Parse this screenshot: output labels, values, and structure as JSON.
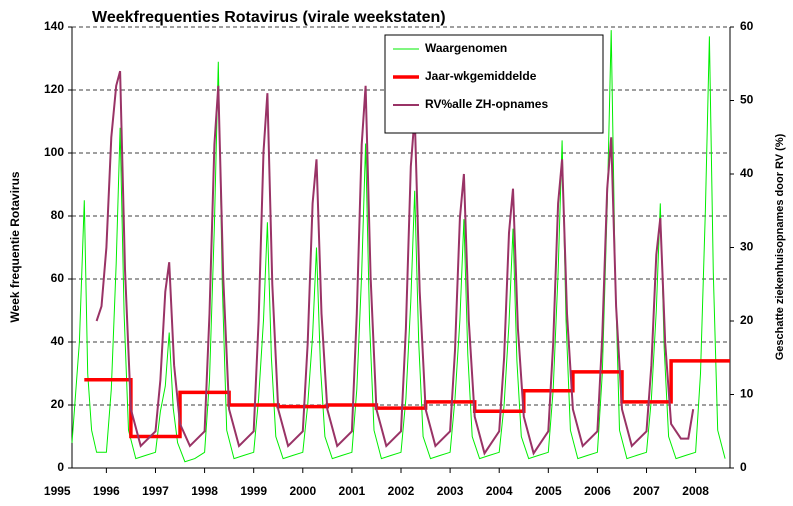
{
  "chart_data": {
    "type": "line",
    "title": "Weekfrequenties Rotavirus (virale weekstaten)",
    "y_label": "Week frequentie Rotavirus",
    "y2_label": "Geschatte ziekenhuisopnames door RV (%)",
    "xlim": [
      1995.3,
      2008.7
    ],
    "xticks": [
      1995,
      1996,
      1997,
      1998,
      1999,
      2000,
      2001,
      2002,
      2003,
      2004,
      2005,
      2006,
      2007,
      2008
    ],
    "ylim": [
      0,
      140
    ],
    "yticks": [
      0,
      20,
      40,
      60,
      80,
      100,
      120,
      140
    ],
    "y2lim": [
      0,
      60
    ],
    "y2ticks": [
      0,
      10,
      20,
      30,
      40,
      50,
      60
    ],
    "grid": true,
    "legend": "top-right",
    "series": [
      {
        "name": "Waargenomen",
        "color": "#00ee00",
        "x": [
          1995.3,
          1995.45,
          1995.55,
          1995.62,
          1995.7,
          1995.8,
          1996.0,
          1996.1,
          1996.2,
          1996.28,
          1996.36,
          1996.45,
          1996.6,
          1996.8,
          1997.0,
          1997.1,
          1997.2,
          1997.28,
          1997.36,
          1997.45,
          1997.6,
          1997.8,
          1998.0,
          1998.1,
          1998.2,
          1998.28,
          1998.36,
          1998.45,
          1998.6,
          1998.8,
          1999.0,
          1999.1,
          1999.2,
          1999.28,
          1999.36,
          1999.45,
          1999.6,
          1999.8,
          2000.0,
          2000.1,
          2000.2,
          2000.28,
          2000.36,
          2000.45,
          2000.6,
          2000.8,
          2001.0,
          2001.1,
          2001.2,
          2001.28,
          2001.36,
          2001.45,
          2001.6,
          2001.8,
          2002.0,
          2002.1,
          2002.2,
          2002.28,
          2002.36,
          2002.45,
          2002.6,
          2002.8,
          2003.0,
          2003.1,
          2003.2,
          2003.28,
          2003.36,
          2003.45,
          2003.6,
          2003.8,
          2004.0,
          2004.1,
          2004.2,
          2004.28,
          2004.36,
          2004.45,
          2004.6,
          2004.8,
          2005.0,
          2005.1,
          2005.2,
          2005.28,
          2005.36,
          2005.45,
          2005.6,
          2005.8,
          2006.0,
          2006.1,
          2006.2,
          2006.28,
          2006.36,
          2006.45,
          2006.6,
          2006.8,
          2007.0,
          2007.1,
          2007.2,
          2007.28,
          2007.36,
          2007.45,
          2007.6,
          2007.8,
          2008.0,
          2008.1,
          2008.2,
          2008.28,
          2008.36,
          2008.45,
          2008.6
        ],
        "values": [
          8,
          40,
          85,
          30,
          12,
          5,
          5,
          25,
          65,
          108,
          49,
          12,
          3,
          4,
          5,
          18,
          26,
          43,
          19,
          8,
          2,
          3,
          5,
          28,
          77,
          129,
          58,
          12,
          3,
          4,
          5,
          22,
          47,
          78,
          35,
          10,
          3,
          4,
          5,
          20,
          42,
          70,
          32,
          10,
          3,
          4,
          5,
          25,
          62,
          103,
          46,
          12,
          3,
          4,
          5,
          22,
          53,
          88,
          40,
          10,
          3,
          4,
          5,
          22,
          47,
          79,
          36,
          10,
          3,
          4,
          5,
          20,
          46,
          76,
          34,
          10,
          3,
          4,
          5,
          25,
          62,
          104,
          47,
          12,
          3,
          4,
          5,
          30,
          83,
          139,
          63,
          12,
          3,
          4,
          5,
          22,
          50,
          84,
          38,
          10,
          3,
          4,
          5,
          30,
          82,
          137,
          62,
          12,
          3
        ]
      },
      {
        "name": "Jaar-wkgemiddelde",
        "color": "#ff0000",
        "x": [
          1995.55,
          1996.5,
          1996.5,
          1997.5,
          1997.5,
          1998.5,
          1998.5,
          1999.5,
          1999.5,
          2000.5,
          2000.5,
          2001.5,
          2001.5,
          2002.5,
          2002.5,
          2003.5,
          2003.5,
          2004.5,
          2004.5,
          2005.5,
          2005.5,
          2006.5,
          2006.5,
          2007.5,
          2007.5,
          2008.7
        ],
        "values": [
          28,
          28,
          10,
          10,
          24,
          24,
          20,
          20,
          19.5,
          19.5,
          20,
          20,
          19,
          19,
          21,
          21,
          18,
          18,
          24.5,
          24.5,
          30.5,
          30.5,
          21,
          21,
          34,
          34
        ]
      },
      {
        "name": "RV%alle ZH-opnames",
        "color": "#993366",
        "axis": "y2",
        "x": [
          1995.8,
          1995.9,
          1996.0,
          1996.1,
          1996.2,
          1996.28,
          1996.38,
          1996.5,
          1996.7,
          1997.0,
          1997.1,
          1997.2,
          1997.28,
          1997.38,
          1997.5,
          1997.7,
          1998.0,
          1998.1,
          1998.2,
          1998.28,
          1998.38,
          1998.5,
          1998.7,
          1999.0,
          1999.1,
          1999.2,
          1999.28,
          1999.38,
          1999.5,
          1999.7,
          2000.0,
          2000.1,
          2000.2,
          2000.28,
          2000.38,
          2000.5,
          2000.7,
          2001.0,
          2001.1,
          2001.2,
          2001.28,
          2001.38,
          2001.5,
          2001.7,
          2002.0,
          2002.1,
          2002.2,
          2002.28,
          2002.38,
          2002.5,
          2002.7,
          2003.0,
          2003.1,
          2003.2,
          2003.28,
          2003.38,
          2003.5,
          2003.7,
          2004.0,
          2004.1,
          2004.2,
          2004.28,
          2004.38,
          2004.5,
          2004.7,
          2005.0,
          2005.1,
          2005.2,
          2005.28,
          2005.38,
          2005.5,
          2005.7,
          2006.0,
          2006.1,
          2006.2,
          2006.28,
          2006.38,
          2006.5,
          2006.7,
          2007.0,
          2007.1,
          2007.2,
          2007.28,
          2007.38,
          2007.5,
          2007.7,
          2007.85,
          2007.95
        ],
        "values": [
          20,
          22,
          30,
          45,
          52,
          54,
          27,
          8,
          3,
          5,
          12,
          24,
          28,
          14,
          6,
          3,
          5,
          21,
          44,
          52,
          26,
          8,
          3,
          5,
          20,
          43,
          51,
          25,
          8,
          3,
          5,
          17,
          36,
          42,
          21,
          8,
          3,
          5,
          21,
          44,
          52,
          26,
          8,
          3,
          5,
          19,
          41,
          48,
          24,
          8,
          3,
          5,
          16,
          34,
          40,
          20,
          7,
          2,
          5,
          15,
          32,
          38,
          19,
          7,
          2,
          5,
          17,
          36,
          42,
          21,
          8,
          3,
          5,
          18,
          38,
          45,
          22,
          8,
          3,
          5,
          14,
          29,
          34,
          17,
          6,
          4,
          4,
          8
        ]
      }
    ]
  }
}
